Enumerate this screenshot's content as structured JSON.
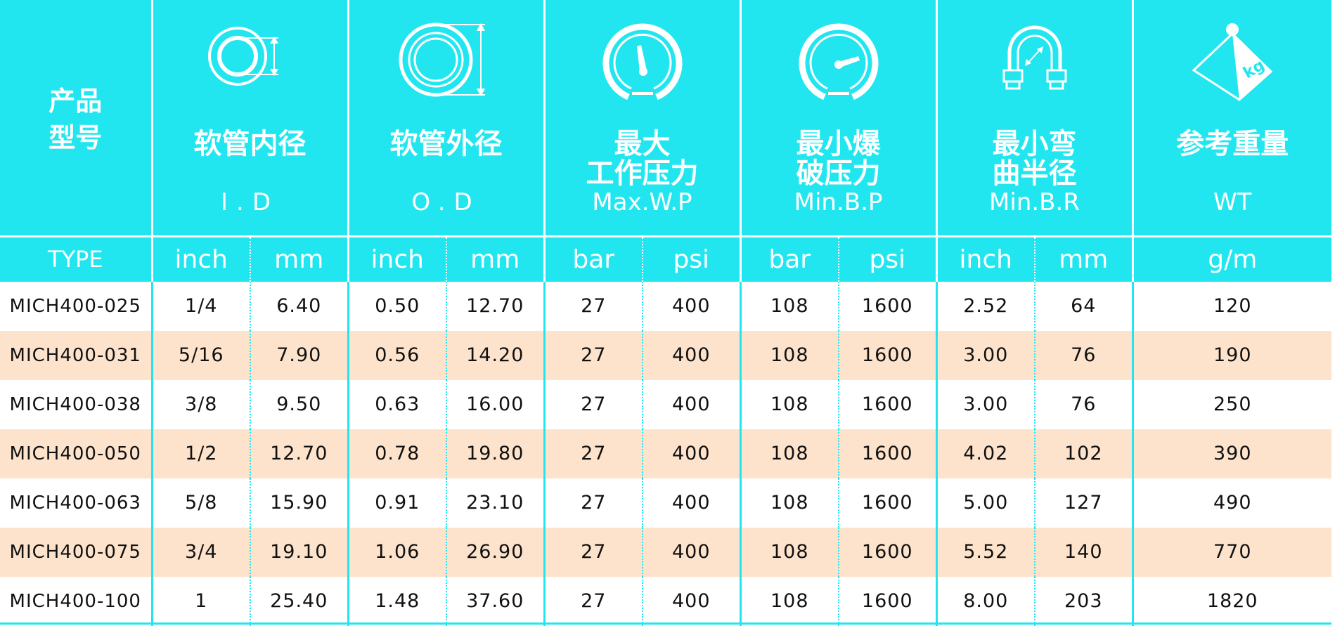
{
  "header": {
    "type_title": [
      "产品",
      "型号"
    ],
    "columns": [
      {
        "zh": [
          "软管内径"
        ],
        "en": "I.D",
        "icon": "hose-inner-diameter-icon"
      },
      {
        "zh": [
          "软管外径"
        ],
        "en": "O.D",
        "icon": "hose-outer-diameter-icon"
      },
      {
        "zh": [
          "最大",
          "工作压力"
        ],
        "en": "Max.W.P",
        "icon": "pressure-gauge-icon"
      },
      {
        "zh": [
          "最小爆",
          "破压力"
        ],
        "en": "Min.B.P",
        "icon": "burst-gauge-icon"
      },
      {
        "zh": [
          "最小弯",
          "曲半径"
        ],
        "en": "Min.B.R",
        "icon": "bend-radius-icon"
      },
      {
        "zh": [
          "参考重量"
        ],
        "en": "WT",
        "icon": "weight-kg-icon"
      }
    ],
    "weight_icon_text": "kg"
  },
  "units": [
    "TYPE",
    "inch",
    "mm",
    "inch",
    "mm",
    "bar",
    "psi",
    "bar",
    "psi",
    "inch",
    "mm",
    "g/m"
  ],
  "rows": [
    [
      "MICH400-025",
      "1/4",
      "6.40",
      "0.50",
      "12.70",
      "27",
      "400",
      "108",
      "1600",
      "2.52",
      "64",
      "120"
    ],
    [
      "MICH400-031",
      "5/16",
      "7.90",
      "0.56",
      "14.20",
      "27",
      "400",
      "108",
      "1600",
      "3.00",
      "76",
      "190"
    ],
    [
      "MICH400-038",
      "3/8",
      "9.50",
      "0.63",
      "16.00",
      "27",
      "400",
      "108",
      "1600",
      "3.00",
      "76",
      "250"
    ],
    [
      "MICH400-050",
      "1/2",
      "12.70",
      "0.78",
      "19.80",
      "27",
      "400",
      "108",
      "1600",
      "4.02",
      "102",
      "390"
    ],
    [
      "MICH400-063",
      "5/8",
      "15.90",
      "0.91",
      "23.10",
      "27",
      "400",
      "108",
      "1600",
      "5.00",
      "127",
      "490"
    ],
    [
      "MICH400-075",
      "3/4",
      "19.10",
      "1.06",
      "26.90",
      "27",
      "400",
      "108",
      "1600",
      "5.52",
      "140",
      "770"
    ],
    [
      "MICH400-100",
      "1",
      "25.40",
      "1.48",
      "37.60",
      "27",
      "400",
      "108",
      "1600",
      "8.00",
      "203",
      "1820"
    ]
  ],
  "colors": {
    "header_bg": "#22e6ef",
    "row_alt_bg": "#fde3cb",
    "text": "#111111"
  }
}
